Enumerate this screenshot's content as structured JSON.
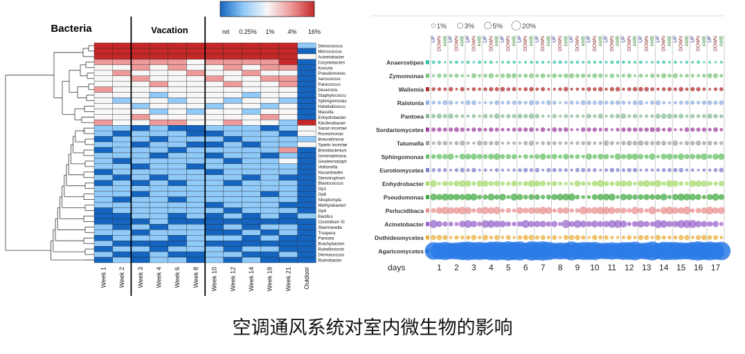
{
  "caption": "空调通风系统对室内微生物的影响",
  "chart_data": [
    {
      "type": "heatmap",
      "group_labels": [
        "Bacteria",
        "Vacation"
      ],
      "color_scale": {
        "labels": [
          "nd",
          "0.25%",
          "1%",
          "4%",
          "16%"
        ],
        "colors": [
          "#1565c0",
          "#90caf9",
          "#f7f7f7",
          "#ef9a9a",
          "#c62828"
        ]
      },
      "columns": [
        "Week 1",
        "Week 2",
        "Week 3",
        "Week 4",
        "Week 6",
        "Week 8",
        "Week 10",
        "Week 12",
        "Week 14",
        "Week 18",
        "Week 21",
        "Outdoor"
      ],
      "rows": [
        "Deinococcus",
        "Micrococcus",
        "Acinetobacter",
        "Corynebacteri",
        "Kocuria",
        "Pseudomonas",
        "Aerococcus",
        "Paracoccus",
        "Desemzia",
        "Staphylococcu",
        "Sphingomonas",
        "Halalkalicoccu",
        "Massilia",
        "Enhydrobacter",
        "Kleobnobacter",
        "Sacari incertae",
        "Roseomonas",
        "Breundimona",
        "Sparto incertae",
        "Brevibacterium",
        "Gemmatimona",
        "Geodermatoph",
        "Veillonella",
        "Nocardioides",
        "Stenotrophom",
        "Blastococcus",
        "Gp1",
        "Gp6",
        "Streptomyta",
        "Methylobacteri",
        "Gp4",
        "Bacillus",
        "Clostridium XI",
        "Skermanella",
        "Truepera",
        "Pantoea",
        "Brachybacteri",
        "Rubellimicrob",
        "Dermacoccus",
        "Rubrobacter"
      ],
      "values": [
        [
          4,
          4,
          4,
          4,
          4,
          4,
          4,
          4,
          4,
          4,
          4,
          1
        ],
        [
          4,
          4,
          4,
          4,
          4,
          4,
          4,
          4,
          4,
          4,
          4,
          0
        ],
        [
          4,
          4,
          4,
          4,
          4,
          4,
          4,
          4,
          4,
          4,
          4,
          2
        ],
        [
          3,
          3,
          3,
          3,
          3,
          2,
          3,
          3,
          3,
          3,
          4,
          0
        ],
        [
          2,
          2,
          3,
          2,
          3,
          2,
          2,
          3,
          2,
          3,
          3,
          0
        ],
        [
          2,
          3,
          2,
          2,
          2,
          3,
          2,
          2,
          3,
          2,
          2,
          0
        ],
        [
          2,
          2,
          3,
          2,
          2,
          2,
          3,
          2,
          2,
          3,
          3,
          0
        ],
        [
          2,
          2,
          2,
          3,
          2,
          2,
          2,
          3,
          2,
          2,
          3,
          0
        ],
        [
          3,
          2,
          2,
          2,
          2,
          2,
          2,
          2,
          2,
          2,
          2,
          0
        ],
        [
          2,
          2,
          2,
          1,
          2,
          2,
          2,
          2,
          1,
          2,
          2,
          0
        ],
        [
          2,
          1,
          2,
          2,
          1,
          2,
          2,
          1,
          2,
          2,
          1,
          0
        ],
        [
          2,
          2,
          1,
          2,
          2,
          2,
          1,
          2,
          2,
          1,
          2,
          0
        ],
        [
          2,
          2,
          2,
          1,
          2,
          1,
          2,
          2,
          1,
          2,
          2,
          0
        ],
        [
          2,
          2,
          3,
          2,
          2,
          2,
          2,
          2,
          2,
          3,
          2,
          0
        ],
        [
          3,
          2,
          2,
          3,
          3,
          2,
          2,
          3,
          2,
          2,
          1,
          4
        ],
        [
          1,
          1,
          0,
          1,
          0,
          0,
          1,
          1,
          1,
          0,
          1,
          2
        ],
        [
          1,
          0,
          1,
          1,
          1,
          0,
          0,
          1,
          1,
          1,
          0,
          2
        ],
        [
          0,
          1,
          1,
          0,
          1,
          1,
          1,
          0,
          1,
          1,
          1,
          1
        ],
        [
          1,
          1,
          0,
          1,
          1,
          0,
          0,
          1,
          0,
          1,
          1,
          2
        ],
        [
          0,
          1,
          1,
          1,
          0,
          1,
          1,
          1,
          1,
          1,
          3,
          0
        ],
        [
          1,
          1,
          1,
          0,
          1,
          1,
          0,
          1,
          1,
          0,
          1,
          0
        ],
        [
          1,
          0,
          1,
          1,
          1,
          1,
          1,
          0,
          1,
          1,
          2,
          0
        ],
        [
          1,
          1,
          0,
          1,
          1,
          0,
          1,
          1,
          1,
          1,
          1,
          0
        ],
        [
          0,
          1,
          1,
          1,
          1,
          1,
          0,
          1,
          1,
          1,
          1,
          0
        ],
        [
          1,
          0,
          1,
          0,
          1,
          1,
          1,
          1,
          0,
          1,
          0,
          0
        ],
        [
          0,
          1,
          0,
          1,
          0,
          1,
          1,
          0,
          1,
          1,
          1,
          0
        ],
        [
          1,
          1,
          1,
          1,
          1,
          1,
          1,
          1,
          1,
          1,
          1,
          0
        ],
        [
          1,
          1,
          0,
          1,
          1,
          1,
          1,
          1,
          1,
          0,
          1,
          0
        ],
        [
          1,
          0,
          1,
          1,
          0,
          1,
          1,
          1,
          1,
          1,
          1,
          0
        ],
        [
          1,
          1,
          1,
          1,
          1,
          1,
          0,
          1,
          1,
          1,
          0,
          0
        ],
        [
          0,
          1,
          1,
          1,
          1,
          1,
          1,
          0,
          1,
          1,
          1,
          0
        ],
        [
          0,
          0,
          1,
          1,
          0,
          1,
          0,
          1,
          0,
          1,
          0,
          1
        ],
        [
          0,
          0,
          0,
          1,
          0,
          0,
          0,
          0,
          0,
          0,
          0,
          0
        ],
        [
          1,
          0,
          1,
          0,
          1,
          1,
          0,
          1,
          0,
          1,
          1,
          0
        ],
        [
          1,
          1,
          0,
          1,
          1,
          1,
          0,
          0,
          1,
          0,
          1,
          0
        ],
        [
          0,
          1,
          1,
          1,
          0,
          1,
          1,
          1,
          0,
          1,
          0,
          0
        ],
        [
          1,
          0,
          0,
          0,
          0,
          1,
          0,
          0,
          0,
          0,
          0,
          0
        ],
        [
          0,
          1,
          1,
          0,
          1,
          1,
          1,
          0,
          1,
          1,
          0,
          0
        ],
        [
          1,
          0,
          0,
          1,
          0,
          0,
          1,
          1,
          0,
          0,
          1,
          0
        ],
        [
          0,
          1,
          0,
          1,
          1,
          0,
          1,
          0,
          1,
          0,
          0,
          0
        ]
      ]
    },
    {
      "type": "scatter",
      "size_legend": [
        {
          "label": "1%",
          "value": 1
        },
        {
          "label": "3%",
          "value": 3
        },
        {
          "label": "5%",
          "value": 5
        },
        {
          "label": "20%",
          "value": 20
        }
      ],
      "xlabel": "days",
      "days": [
        "1",
        "2",
        "3",
        "4",
        "5",
        "6",
        "7",
        "8",
        "9",
        "10",
        "11",
        "12",
        "13",
        "14",
        "15",
        "16",
        "17"
      ],
      "conditions": [
        "UP",
        "DOWN",
        "AMB"
      ],
      "condition_colors": [
        "#2e3a8c",
        "#8e2a2a",
        "#3a8c3a"
      ],
      "taxa": [
        "Anaerostipes",
        "Zymomonas",
        "Wallemia",
        "Ralstonia",
        "Pantoea",
        "Sordariomycetes",
        "Tatumella",
        "Sphingomonas",
        "Eurotiomycetes",
        "Enhydrobacter",
        "Pseudomonas",
        "Perlucidibaca",
        "Acinetobacter",
        "Dothideomycetes",
        "Agaricomycetes"
      ],
      "taxa_colors": [
        "#39c4a8",
        "#7cc47c",
        "#b03030",
        "#8fb0e0",
        "#88bb99",
        "#a040a0",
        "#a0a0a0",
        "#66c066",
        "#8080cc",
        "#a6d96a",
        "#44aa44",
        "#e89090",
        "#9966cc",
        "#e8b040",
        "#2a7ae8"
      ],
      "typical_percent": [
        0.3,
        0.8,
        0.6,
        0.8,
        0.9,
        0.7,
        0.9,
        1.5,
        0.6,
        1.8,
        2.0,
        2.4,
        2.6,
        1.0,
        20
      ]
    }
  ]
}
